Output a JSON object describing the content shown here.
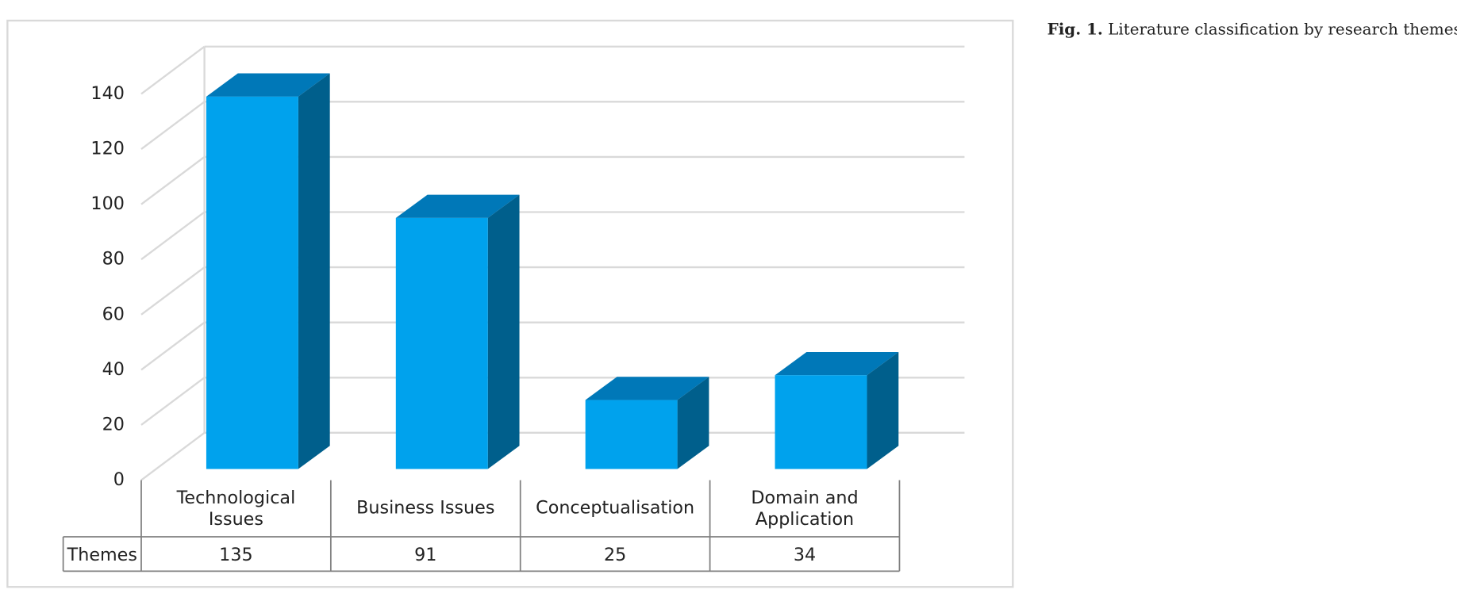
{
  "chart_data": {
    "type": "bar3d",
    "figure_label": "Fig. 1.",
    "title": "Literature classification by research themes.",
    "categories": [
      "Technological Issues",
      "Business Issues",
      "Conceptualisation",
      "Domain and Application"
    ],
    "series": [
      {
        "name": "Themes",
        "color": "#00a2ed",
        "values": [
          135,
          91,
          25,
          34
        ]
      }
    ],
    "ylim": [
      0,
      140
    ],
    "yticks": [
      0,
      20,
      40,
      60,
      80,
      100,
      120,
      140
    ],
    "grid": true
  }
}
